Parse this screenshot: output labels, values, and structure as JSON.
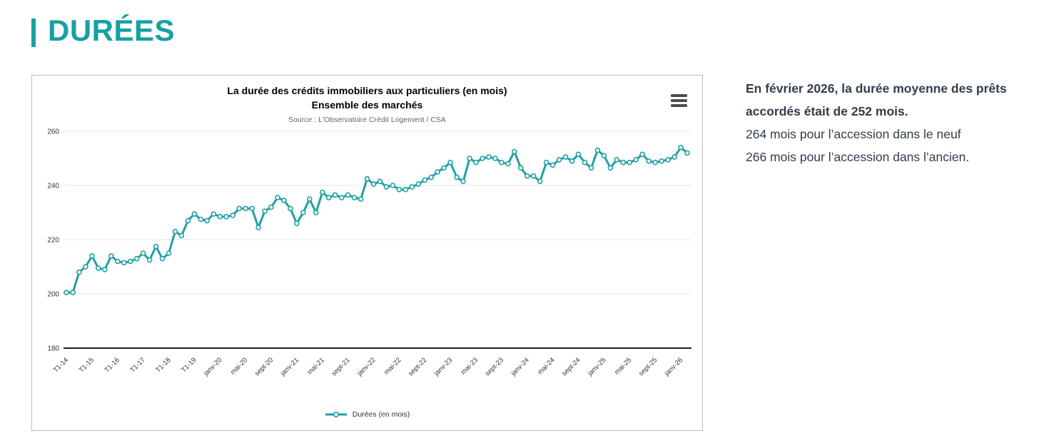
{
  "page": {
    "heading": "DURÉES"
  },
  "colors": {
    "accent": "#16a1a4",
    "line": "#20a0a3",
    "grid": "#e5e5e5",
    "axis": "#000000",
    "tick_text": "#333333",
    "source_text": "#666666",
    "card_border": "#bcbcbc",
    "menu_icon": "#4d4d4d",
    "side_text": "#333d4d"
  },
  "panel_text": {
    "bold_line_1": "En février 2026, la durée moyenne des prêts",
    "bold_line_2": "accordés était de 252 mois.",
    "line_3": "264 mois pour l’accession dans le neuf",
    "line_4": "266 mois pour l’accession dans l’ancien."
  },
  "chart_data": {
    "type": "line",
    "title": "La durée des crédits immobiliers aux particuliers (en mois)",
    "subtitle": "Ensemble des marchés",
    "source": "Source : L'Observatoire Crédit Logement / CSA",
    "legend": "Durées (en mois)",
    "legend_position": "bottom",
    "grid": true,
    "ylim": [
      180,
      260
    ],
    "yticks": [
      180,
      200,
      220,
      240,
      260
    ],
    "tick_every": 4,
    "x_tick_labels": [
      "T1-14",
      "T1-15",
      "T1-16",
      "T1-17",
      "T1-18",
      "T1-19",
      "janv-20",
      "mai-20",
      "sept-20",
      "janv-21",
      "mai-21",
      "sept-21",
      "janv-22",
      "mai-22",
      "sept-22",
      "janv-23",
      "mai-23",
      "sept-23",
      "janv-24",
      "mai-24",
      "sept-24",
      "janv-25",
      "mai-25",
      "sept-25",
      "janv-26"
    ],
    "values": [
      200.5,
      200.5,
      208,
      210,
      214,
      209.5,
      209,
      214,
      212,
      211.5,
      212,
      213,
      215,
      212.5,
      217.5,
      213,
      215,
      223,
      221.5,
      227,
      229.5,
      227.5,
      227,
      229.5,
      228.5,
      228.5,
      229,
      231.5,
      231.5,
      231.5,
      224.5,
      230.5,
      232,
      235.5,
      234.5,
      231.5,
      226,
      230,
      235,
      230,
      237.5,
      235.5,
      236.5,
      235.5,
      236.5,
      235.5,
      235,
      242.5,
      240.5,
      241.5,
      239.5,
      240,
      238.5,
      238.5,
      239.5,
      240.5,
      242,
      243,
      245,
      246.5,
      248.5,
      243,
      241.5,
      250,
      248.5,
      250,
      250.5,
      250,
      248.5,
      248,
      252.5,
      246.5,
      243.5,
      243.5,
      241.5,
      248.5,
      247.5,
      249.5,
      250.5,
      249,
      251.5,
      248.5,
      246.5,
      253,
      251,
      246.5,
      249.5,
      248.5,
      248.5,
      249.5,
      251.5,
      249,
      248.5,
      249,
      249.5,
      250.5,
      254,
      252
    ],
    "line_color": "#20a0a3",
    "marker": "circle-open"
  }
}
